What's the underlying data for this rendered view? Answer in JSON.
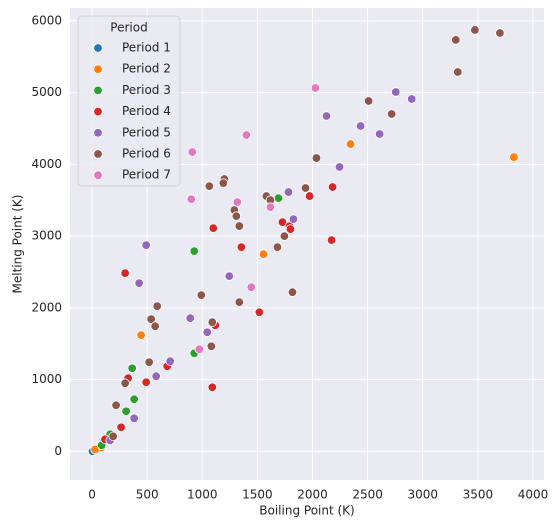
{
  "chart_data": {
    "type": "scatter",
    "xlabel": "Boiling Point (K)",
    "ylabel": "Melting Point (K)",
    "xlim": [
      -200,
      4100
    ],
    "ylim": [
      -400,
      6180
    ],
    "xticks": [
      0,
      500,
      1000,
      1500,
      2000,
      2500,
      3000,
      3500,
      4000
    ],
    "yticks": [
      0,
      1000,
      2000,
      3000,
      4000,
      5000,
      6000
    ],
    "grid": true,
    "legend_title": "Period",
    "legend_position": "upper left",
    "series": [
      {
        "name": "Period 1",
        "color": "#1f77b4",
        "x": [
          20,
          4
        ],
        "values": [
          14,
          1
        ]
      },
      {
        "name": "Period 2",
        "color": "#ff7f0e",
        "x": [
          3827,
          2345,
          1555,
          445,
          77,
          90,
          85,
          27
        ],
        "values": [
          4102,
          4283,
          2749,
          1619,
          63,
          54,
          53,
          25
        ]
      },
      {
        "name": "Period 3",
        "color": "#2ca02c",
        "x": [
          1691,
          927,
          927,
          364,
          382,
          309,
          164,
          87
        ],
        "values": [
          3530,
          2790,
          1367,
          1158,
          725,
          558,
          237,
          84
        ]
      },
      {
        "name": "Period 4",
        "color": "#d62728",
        "x": [
          300,
          1100,
          1355,
          1518,
          1091,
          1118,
          682,
          491,
          327,
          264,
          118,
          1973,
          2182,
          2173,
          1727,
          1791,
          1800
        ],
        "values": [
          2484,
          3111,
          2846,
          1939,
          893,
          1758,
          1186,
          963,
          1019,
          335,
          167,
          3558,
          3684,
          2944,
          3195,
          3139,
          3098
        ]
      },
      {
        "name": "Period 5",
        "color": "#9467bd",
        "x": [
          491,
          427,
          891,
          1045,
          709,
          582,
          382,
          164,
          1245,
          1782,
          1827,
          2245,
          2127,
          2436,
          2609,
          2755,
          2900
        ],
        "values": [
          2874,
          2344,
          1856,
          1660,
          1256,
          1047,
          460,
          153,
          2442,
          3614,
          3237,
          3963,
          4674,
          4535,
          4423,
          5009,
          4911
        ]
      },
      {
        "name": "Period 6",
        "color": "#8c564b",
        "x": [
          3473,
          3300,
          3700,
          3318,
          2509,
          2718,
          2036,
          1936,
          1064,
          1200,
          1191,
          1582,
          1618,
          1291,
          1309,
          1336,
          1745,
          1682,
          1818,
          1336,
          991,
          591,
          536,
          573,
          1082,
          518,
          300,
          218,
          191,
          1091
        ],
        "values": [
          5874,
          5735,
          5832,
          5288,
          4883,
          4702,
          4088,
          3670,
          3697,
          3795,
          3739,
          3558,
          3502,
          3363,
          3279,
          3140,
          3000,
          2846,
          2218,
          2079,
          2177,
          2023,
          1842,
          1744,
          1465,
          1242,
          949,
          642,
          209,
          1800
        ]
      },
      {
        "name": "Period 7",
        "color": "#e377c2",
        "x": [
          909,
          900,
          1318,
          1400,
          2027,
          1618,
          1445,
          973
        ],
        "values": [
          4172,
          3516,
          3474,
          4409,
          5065,
          3404,
          2288,
          1423
        ]
      }
    ]
  }
}
